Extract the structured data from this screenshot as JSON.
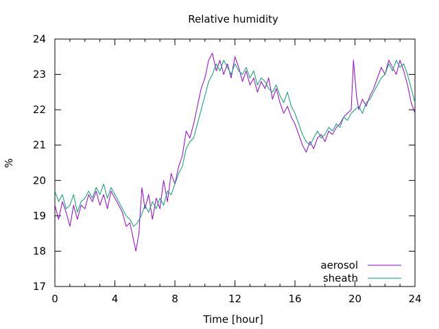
{
  "chart_data": {
    "type": "line",
    "title": "Relative humidity",
    "xlabel": "Time [hour]",
    "ylabel": "%",
    "xlim": [
      0,
      24
    ],
    "ylim": [
      17,
      24
    ],
    "x_ticks": [
      0,
      4,
      8,
      12,
      16,
      20,
      24
    ],
    "y_ticks": [
      17,
      18,
      19,
      20,
      21,
      22,
      23,
      24
    ],
    "x_tick_labels": [
      "0",
      "4",
      "8",
      "12",
      "16",
      "20",
      "24"
    ],
    "y_tick_labels": [
      "17",
      "18",
      "19",
      "20",
      "21",
      "22",
      "23",
      "24"
    ],
    "grid": false,
    "legend_position": "bottom-right",
    "series": [
      {
        "name": "aerosol",
        "color": "#9400d3",
        "points": [
          [
            0.0,
            19.3
          ],
          [
            0.25,
            18.9
          ],
          [
            0.5,
            19.4
          ],
          [
            0.75,
            19.1
          ],
          [
            1.0,
            18.7
          ],
          [
            1.25,
            19.3
          ],
          [
            1.5,
            18.9
          ],
          [
            1.75,
            19.3
          ],
          [
            2.0,
            19.2
          ],
          [
            2.25,
            19.6
          ],
          [
            2.5,
            19.4
          ],
          [
            2.75,
            19.7
          ],
          [
            3.0,
            19.3
          ],
          [
            3.25,
            19.6
          ],
          [
            3.5,
            19.2
          ],
          [
            3.75,
            19.7
          ],
          [
            4.0,
            19.5
          ],
          [
            4.25,
            19.3
          ],
          [
            4.5,
            19.1
          ],
          [
            4.75,
            18.7
          ],
          [
            5.0,
            18.8
          ],
          [
            5.25,
            18.3
          ],
          [
            5.4,
            18.0
          ],
          [
            5.6,
            18.5
          ],
          [
            5.8,
            19.8
          ],
          [
            6.0,
            19.2
          ],
          [
            6.25,
            19.6
          ],
          [
            6.5,
            18.9
          ],
          [
            6.75,
            19.5
          ],
          [
            7.0,
            19.2
          ],
          [
            7.25,
            20.0
          ],
          [
            7.5,
            19.4
          ],
          [
            7.75,
            20.2
          ],
          [
            8.0,
            19.9
          ],
          [
            8.25,
            20.4
          ],
          [
            8.5,
            20.7
          ],
          [
            8.75,
            21.4
          ],
          [
            9.0,
            21.2
          ],
          [
            9.25,
            21.6
          ],
          [
            9.5,
            22.1
          ],
          [
            9.75,
            22.6
          ],
          [
            10.0,
            22.9
          ],
          [
            10.25,
            23.4
          ],
          [
            10.5,
            23.6
          ],
          [
            10.75,
            23.1
          ],
          [
            11.0,
            23.4
          ],
          [
            11.25,
            23.0
          ],
          [
            11.5,
            23.3
          ],
          [
            11.75,
            22.9
          ],
          [
            12.0,
            23.5
          ],
          [
            12.25,
            23.2
          ],
          [
            12.5,
            22.8
          ],
          [
            12.75,
            23.1
          ],
          [
            13.0,
            22.7
          ],
          [
            13.25,
            22.9
          ],
          [
            13.5,
            22.5
          ],
          [
            13.75,
            22.8
          ],
          [
            14.0,
            22.6
          ],
          [
            14.25,
            22.9
          ],
          [
            14.5,
            22.3
          ],
          [
            14.75,
            22.6
          ],
          [
            15.0,
            22.2
          ],
          [
            15.25,
            21.9
          ],
          [
            15.5,
            22.1
          ],
          [
            15.75,
            21.8
          ],
          [
            16.0,
            21.6
          ],
          [
            16.25,
            21.3
          ],
          [
            16.5,
            21.0
          ],
          [
            16.75,
            20.8
          ],
          [
            17.0,
            21.1
          ],
          [
            17.25,
            20.9
          ],
          [
            17.5,
            21.2
          ],
          [
            17.75,
            21.3
          ],
          [
            18.0,
            21.1
          ],
          [
            18.25,
            21.4
          ],
          [
            18.5,
            21.3
          ],
          [
            18.75,
            21.5
          ],
          [
            19.0,
            21.6
          ],
          [
            19.25,
            21.8
          ],
          [
            19.5,
            21.9
          ],
          [
            19.75,
            22.0
          ],
          [
            19.9,
            23.4
          ],
          [
            20.1,
            22.4
          ],
          [
            20.25,
            22.0
          ],
          [
            20.5,
            22.3
          ],
          [
            20.75,
            22.1
          ],
          [
            21.0,
            22.4
          ],
          [
            21.25,
            22.6
          ],
          [
            21.5,
            22.9
          ],
          [
            21.75,
            23.2
          ],
          [
            22.0,
            23.0
          ],
          [
            22.25,
            23.4
          ],
          [
            22.5,
            23.2
          ],
          [
            22.75,
            23.0
          ],
          [
            23.0,
            23.4
          ],
          [
            23.25,
            23.1
          ],
          [
            23.5,
            22.7
          ],
          [
            23.75,
            22.2
          ],
          [
            24.0,
            21.9
          ]
        ]
      },
      {
        "name": "sheath",
        "color": "#009e73",
        "points": [
          [
            0.0,
            19.7
          ],
          [
            0.25,
            19.4
          ],
          [
            0.5,
            19.6
          ],
          [
            0.75,
            19.2
          ],
          [
            1.0,
            19.3
          ],
          [
            1.25,
            19.6
          ],
          [
            1.5,
            19.1
          ],
          [
            1.75,
            19.4
          ],
          [
            2.0,
            19.5
          ],
          [
            2.25,
            19.7
          ],
          [
            2.5,
            19.5
          ],
          [
            2.75,
            19.8
          ],
          [
            3.0,
            19.6
          ],
          [
            3.25,
            19.9
          ],
          [
            3.5,
            19.5
          ],
          [
            3.75,
            19.8
          ],
          [
            4.0,
            19.6
          ],
          [
            4.25,
            19.4
          ],
          [
            4.5,
            19.2
          ],
          [
            4.75,
            19.0
          ],
          [
            5.0,
            18.9
          ],
          [
            5.25,
            18.7
          ],
          [
            5.5,
            18.8
          ],
          [
            5.75,
            19.0
          ],
          [
            6.0,
            19.3
          ],
          [
            6.25,
            19.1
          ],
          [
            6.5,
            19.4
          ],
          [
            6.75,
            19.2
          ],
          [
            7.0,
            19.5
          ],
          [
            7.25,
            19.3
          ],
          [
            7.5,
            19.7
          ],
          [
            7.75,
            19.6
          ],
          [
            8.0,
            19.9
          ],
          [
            8.25,
            20.2
          ],
          [
            8.5,
            20.4
          ],
          [
            8.75,
            20.9
          ],
          [
            9.0,
            21.1
          ],
          [
            9.25,
            21.2
          ],
          [
            9.5,
            21.6
          ],
          [
            9.75,
            22.0
          ],
          [
            10.0,
            22.4
          ],
          [
            10.25,
            22.8
          ],
          [
            10.5,
            23.0
          ],
          [
            10.75,
            23.3
          ],
          [
            11.0,
            23.1
          ],
          [
            11.25,
            23.4
          ],
          [
            11.5,
            23.2
          ],
          [
            11.75,
            23.0
          ],
          [
            12.0,
            23.3
          ],
          [
            12.25,
            23.1
          ],
          [
            12.5,
            23.0
          ],
          [
            12.75,
            23.2
          ],
          [
            13.0,
            22.9
          ],
          [
            13.25,
            23.1
          ],
          [
            13.5,
            22.7
          ],
          [
            13.75,
            22.9
          ],
          [
            14.0,
            22.8
          ],
          [
            14.25,
            22.6
          ],
          [
            14.5,
            22.5
          ],
          [
            14.75,
            22.7
          ],
          [
            15.0,
            22.4
          ],
          [
            15.25,
            22.2
          ],
          [
            15.5,
            22.5
          ],
          [
            15.75,
            22.1
          ],
          [
            16.0,
            21.9
          ],
          [
            16.25,
            21.6
          ],
          [
            16.5,
            21.3
          ],
          [
            16.75,
            21.1
          ],
          [
            17.0,
            21.0
          ],
          [
            17.25,
            21.2
          ],
          [
            17.5,
            21.4
          ],
          [
            17.75,
            21.2
          ],
          [
            18.0,
            21.3
          ],
          [
            18.25,
            21.5
          ],
          [
            18.5,
            21.4
          ],
          [
            18.75,
            21.6
          ],
          [
            19.0,
            21.5
          ],
          [
            19.25,
            21.8
          ],
          [
            19.5,
            21.7
          ],
          [
            19.75,
            21.9
          ],
          [
            20.0,
            22.0
          ],
          [
            20.25,
            22.1
          ],
          [
            20.5,
            21.9
          ],
          [
            20.75,
            22.2
          ],
          [
            21.0,
            22.3
          ],
          [
            21.25,
            22.5
          ],
          [
            21.5,
            22.7
          ],
          [
            21.75,
            22.9
          ],
          [
            22.0,
            23.0
          ],
          [
            22.25,
            23.3
          ],
          [
            22.5,
            23.1
          ],
          [
            22.75,
            23.4
          ],
          [
            23.0,
            23.2
          ],
          [
            23.25,
            23.3
          ],
          [
            23.5,
            23.0
          ],
          [
            23.75,
            22.6
          ],
          [
            24.0,
            22.2
          ]
        ]
      }
    ]
  }
}
